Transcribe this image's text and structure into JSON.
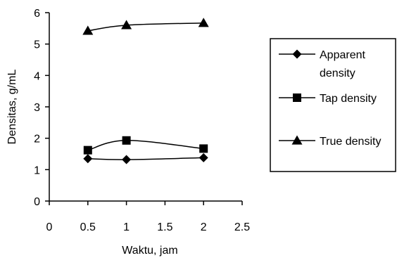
{
  "chart_data": {
    "type": "line",
    "title": "",
    "xlabel": "Waktu, jam",
    "ylabel": "Densitas, g/mL",
    "xlim": [
      0,
      2.5
    ],
    "ylim": [
      0,
      6
    ],
    "xticks": [
      "0",
      "0.5",
      "1",
      "1.5",
      "2",
      "2.5"
    ],
    "yticks": [
      "0",
      "1",
      "2",
      "3",
      "4",
      "5",
      "6"
    ],
    "x": [
      0.5,
      1,
      2
    ],
    "grid": false,
    "legend_position": "right",
    "series": [
      {
        "name": "Apparent density",
        "legend_lines": [
          "Apparent",
          "density"
        ],
        "marker": "diamond",
        "values": [
          1.35,
          1.32,
          1.38
        ]
      },
      {
        "name": "Tap density",
        "legend_lines": [
          "Tap density"
        ],
        "marker": "square",
        "values": [
          1.62,
          1.93,
          1.67
        ]
      },
      {
        "name": "True density",
        "legend_lines": [
          "True density"
        ],
        "marker": "triangle",
        "values": [
          5.42,
          5.6,
          5.67
        ]
      }
    ]
  }
}
